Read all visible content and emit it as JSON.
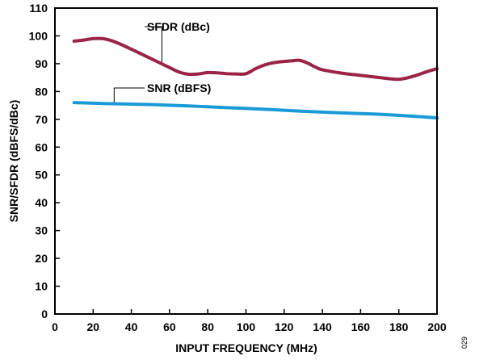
{
  "chart_data": {
    "type": "line",
    "xlabel": "INPUT FREQUENCY (MHz)",
    "ylabel": "SNR/SFDR (dBFS/dBc)",
    "xlim": [
      0,
      200
    ],
    "ylim": [
      0,
      110
    ],
    "xticks": [
      "0",
      "20",
      "40",
      "60",
      "80",
      "100",
      "120",
      "140",
      "160",
      "180",
      "200"
    ],
    "yticks": [
      "0",
      "10",
      "20",
      "30",
      "40",
      "50",
      "60",
      "70",
      "80",
      "90",
      "100",
      "110"
    ],
    "grid": false,
    "series": [
      {
        "name": "SFDR (dBc)",
        "color": "#9b2346",
        "x": [
          10,
          15,
          20,
          25,
          30,
          35,
          40,
          50,
          60,
          65,
          70,
          75,
          80,
          85,
          90,
          95,
          100,
          105,
          110,
          115,
          120,
          125,
          128,
          132,
          136,
          140,
          150,
          160,
          170,
          175,
          180,
          185,
          190,
          195,
          200
        ],
        "y": [
          98.1,
          98.5,
          99.0,
          99.0,
          98.2,
          96.8,
          95.2,
          91.9,
          88.6,
          87.0,
          86.2,
          86.3,
          86.8,
          86.7,
          86.4,
          86.3,
          86.4,
          88.2,
          89.6,
          90.4,
          90.8,
          91.1,
          91.2,
          90.3,
          88.9,
          87.8,
          86.6,
          85.8,
          85.0,
          84.6,
          84.4,
          85.0,
          86.0,
          87.2,
          88.2
        ]
      },
      {
        "name": "SNR (dBFS)",
        "color": "#1a9ad6",
        "x": [
          10,
          30,
          50,
          70,
          90,
          110,
          130,
          150,
          170,
          190,
          200
        ],
        "y": [
          76.0,
          75.6,
          75.3,
          74.8,
          74.2,
          73.6,
          72.9,
          72.3,
          71.8,
          71.0,
          70.5
        ]
      }
    ]
  },
  "figure_id": "029"
}
